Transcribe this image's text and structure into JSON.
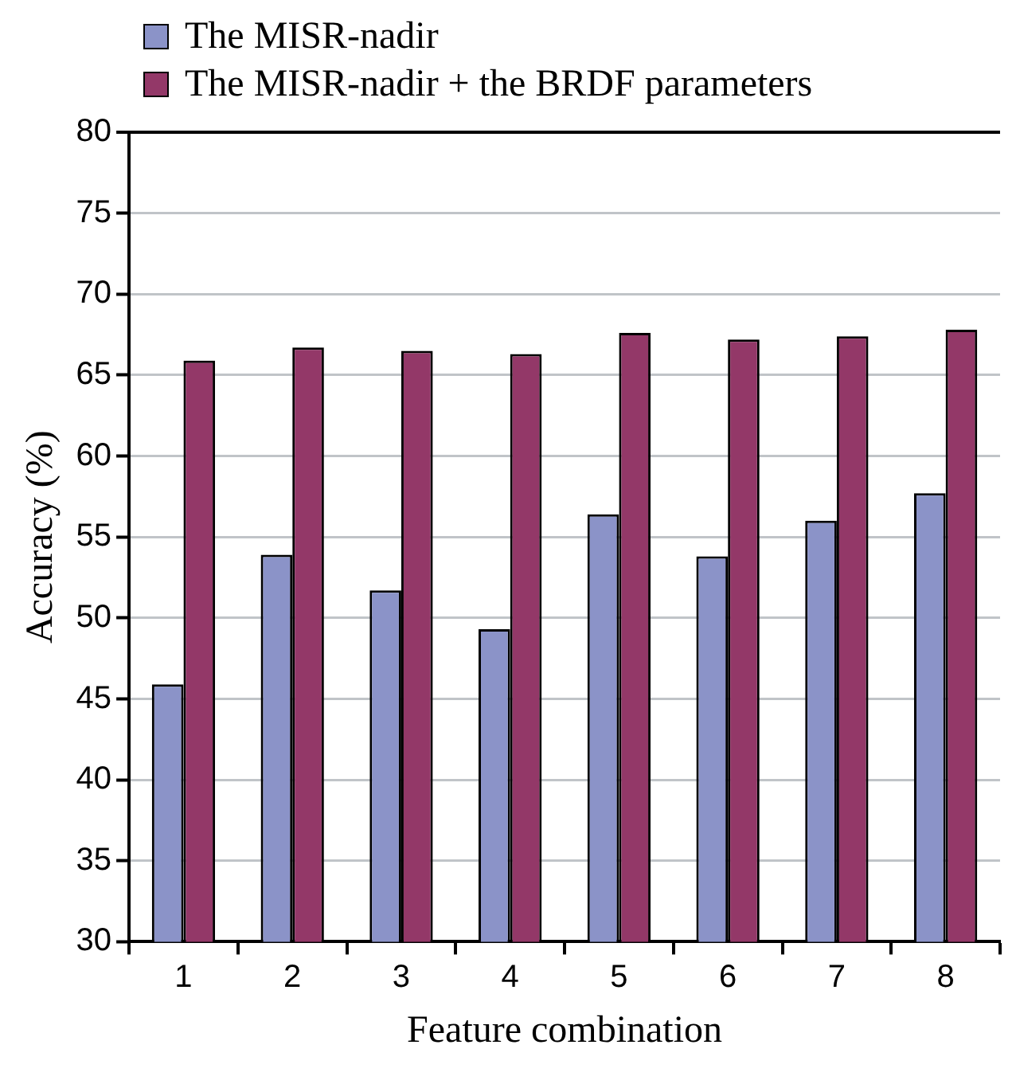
{
  "chart_data": {
    "type": "bar",
    "xlabel": "Feature combination",
    "ylabel": "Accuracy (%)",
    "categories": [
      "1",
      "2",
      "3",
      "4",
      "5",
      "6",
      "7",
      "8"
    ],
    "series": [
      {
        "name": "The MISR-nadir",
        "color": "#8b93c8",
        "values": [
          45.9,
          53.9,
          51.7,
          49.3,
          56.4,
          53.8,
          56.0,
          57.7
        ]
      },
      {
        "name": "The MISR-nadir + the BRDF parameters",
        "color": "#933868",
        "values": [
          65.9,
          66.7,
          66.5,
          66.3,
          67.6,
          67.2,
          67.4,
          67.8
        ]
      }
    ],
    "ylim": [
      30,
      80
    ],
    "yticks": [
      30,
      35,
      40,
      45,
      50,
      55,
      60,
      65,
      70,
      75,
      80
    ],
    "grid": "y",
    "legend": "top left"
  }
}
